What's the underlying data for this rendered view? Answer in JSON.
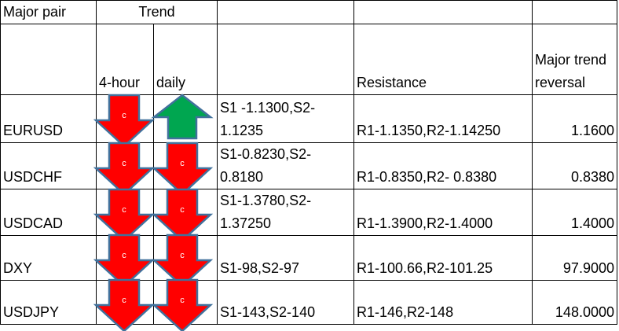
{
  "headers": {
    "major_pair": "Major pair",
    "trend": "Trend",
    "four_hour": "4-hour",
    "daily": "daily",
    "support": "",
    "resistance": "Resistance",
    "reversal": "Major trend reversal"
  },
  "rows": [
    {
      "pair": "EURUSD",
      "trend_4h": "down",
      "trend_daily": "up",
      "support": "S1 -1.1300,S2-1.1235",
      "resistance": "R1-1.1350,R2-1.14250",
      "reversal": "1.1600"
    },
    {
      "pair": "USDCHF",
      "trend_4h": "down",
      "trend_daily": "down",
      "support": "S1-0.8230,S2-0.8180",
      "resistance": "R1-0.8350,R2- 0.8380",
      "reversal": "0.8380"
    },
    {
      "pair": "USDCAD",
      "trend_4h": "down",
      "trend_daily": "down",
      "support": "S1-1.3780,S2-1.37250",
      "resistance": "R1-1.3900,R2-1.4000",
      "reversal": "1.4000"
    },
    {
      "pair": "DXY",
      "trend_4h": "down",
      "trend_daily": "down",
      "support": "S1-98,S2-97",
      "resistance": "R1-100.66,R2-101.25",
      "reversal": "97.9000"
    },
    {
      "pair": "USDJPY",
      "trend_4h": "down",
      "trend_daily": "down",
      "support": "S1-143,S2-140",
      "resistance": "R1-146,R2-148",
      "reversal": "148.0000"
    }
  ],
  "arrow_label": "c",
  "colors": {
    "down": "#ff0000",
    "up": "#00a650",
    "outline": "#41719c"
  }
}
